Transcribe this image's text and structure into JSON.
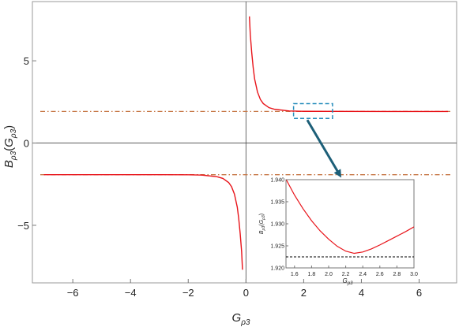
{
  "chart_data": [
    {
      "type": "line",
      "xlabel": "G",
      "xlabel_sub": "ρ3",
      "ylabel": "B",
      "ylabel_sub": "ρ3",
      "ylabel_arg": "G",
      "xlim": [
        -7.4,
        7.3
      ],
      "ylim": [
        -8.5,
        8.6
      ],
      "xticks": [
        -6,
        -4,
        -2,
        0,
        2,
        4,
        6
      ],
      "xtick_labels": [
        "−6",
        "−4",
        "−2",
        "0",
        "2",
        "4",
        "6"
      ],
      "yticks": [
        -5,
        0,
        5
      ],
      "ytick_labels": [
        "−5",
        "0",
        "5"
      ],
      "series": [
        {
          "color": "#e8141a",
          "segments": [
            [
              [
                -7.0,
                -1.923
              ],
              [
                -5.0,
                -1.923
              ],
              [
                -3.0,
                -1.925
              ],
              [
                -2.0,
                -1.93
              ],
              [
                -1.5,
                -1.95
              ],
              [
                -1.0,
                -2.05
              ],
              [
                -0.8,
                -2.15
              ],
              [
                -0.6,
                -2.4
              ],
              [
                -0.5,
                -2.65
              ],
              [
                -0.4,
                -3.1
              ],
              [
                -0.3,
                -3.9
              ],
              [
                -0.25,
                -4.6
              ],
              [
                -0.2,
                -5.5
              ],
              [
                -0.15,
                -6.6
              ],
              [
                -0.12,
                -7.7
              ]
            ],
            [
              [
                0.12,
                7.7
              ],
              [
                0.15,
                6.6
              ],
              [
                0.2,
                5.5
              ],
              [
                0.25,
                4.6
              ],
              [
                0.3,
                3.9
              ],
              [
                0.4,
                3.1
              ],
              [
                0.5,
                2.65
              ],
              [
                0.6,
                2.4
              ],
              [
                0.8,
                2.15
              ],
              [
                1.0,
                2.05
              ],
              [
                1.5,
                1.95
              ],
              [
                2.0,
                1.93
              ],
              [
                3.0,
                1.925
              ],
              [
                5.0,
                1.923
              ],
              [
                7.0,
                1.923
              ]
            ]
          ]
        }
      ],
      "asymptotes": [
        {
          "y": 1.923,
          "color": "#c87a4a",
          "style": "dot-dash"
        },
        {
          "y": -1.923,
          "color": "#c87a4a",
          "style": "dot-dash"
        }
      ],
      "zoom_region": {
        "x": [
          1.65,
          3.0
        ],
        "y": [
          1.5,
          2.4
        ],
        "color": "#2a8fbd"
      },
      "arrow_color": "#1d5f78"
    },
    {
      "type": "line",
      "xlabel": "G",
      "xlabel_sub": "ρ3",
      "ylabel": "B",
      "ylabel_sub": "ρ3",
      "ylabel_arg": "G",
      "xlim": [
        1.5,
        3.0
      ],
      "ylim": [
        1.92,
        1.94
      ],
      "xticks": [
        1.6,
        1.8,
        2.0,
        2.2,
        2.4,
        2.6,
        2.8,
        3.0
      ],
      "xtick_labels": [
        "1.6",
        "1.8",
        "2.0",
        "2.2",
        "2.4",
        "2.6",
        "2.8",
        "3.0"
      ],
      "yticks": [
        1.92,
        1.925,
        1.93,
        1.935,
        1.94
      ],
      "ytick_labels": [
        "1.920",
        "1.925",
        "1.930",
        "1.935",
        "1.940"
      ],
      "series": [
        {
          "color": "#e8141a",
          "points": [
            [
              1.5,
              1.9401
            ],
            [
              1.6,
              1.9365
            ],
            [
              1.7,
              1.9334
            ],
            [
              1.8,
              1.9307
            ],
            [
              1.9,
              1.9284
            ],
            [
              2.0,
              1.9265
            ],
            [
              2.1,
              1.9249
            ],
            [
              2.2,
              1.9238
            ],
            [
              2.3,
              1.9233
            ],
            [
              2.4,
              1.9236
            ],
            [
              2.5,
              1.9243
            ],
            [
              2.6,
              1.9252
            ],
            [
              2.7,
              1.9262
            ],
            [
              2.8,
              1.9272
            ],
            [
              2.9,
              1.9282
            ],
            [
              3.0,
              1.9293
            ]
          ]
        }
      ],
      "asymptotes": [
        {
          "y": 1.9225,
          "color": "#000000",
          "style": "dashed"
        }
      ]
    }
  ]
}
